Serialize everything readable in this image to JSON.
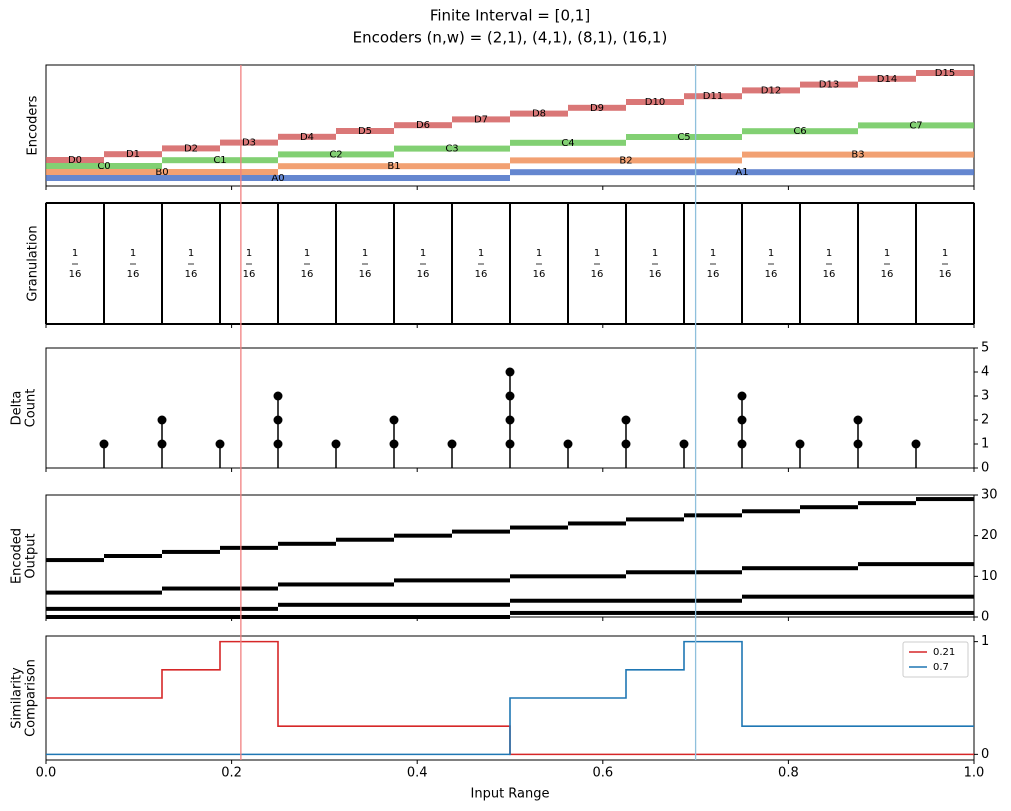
{
  "figure": {
    "title": [
      "Finite Interval = [0,1]",
      "Encoders (n,w) = (2,1), (4,1), (8,1), (16,1)"
    ],
    "xlabel": "Input Range",
    "xlim": [
      0,
      1
    ],
    "xticks": [
      {
        "value": 0,
        "label": "0.0"
      },
      0.2,
      0.4,
      0.6,
      0.8,
      {
        "value": 1,
        "label": "1.0"
      }
    ],
    "cursors": [
      {
        "value": 0.21,
        "color": "#f08080"
      },
      {
        "value": 0.7,
        "color": "#8fc0dc"
      }
    ]
  },
  "chart_data": [
    {
      "type": "segments",
      "ylabel": [
        "Encoders"
      ],
      "series": [
        {
          "color": "#4a72c8",
          "labels": [
            "A0",
            "A1"
          ],
          "edges": [
            0,
            0.5,
            1
          ]
        },
        {
          "color": "#f0915a",
          "labels": [
            "B0",
            "B1",
            "B2",
            "B3"
          ],
          "edges": [
            0,
            0.25,
            0.5,
            0.75,
            1
          ]
        },
        {
          "color": "#6cc85a",
          "labels": [
            "C0",
            "C1",
            "C2",
            "C3",
            "C4",
            "C5",
            "C6",
            "C7"
          ],
          "edges": [
            0,
            0.125,
            0.25,
            0.375,
            0.5,
            0.625,
            0.75,
            0.875,
            1
          ]
        },
        {
          "color": "#d45f5f",
          "labels": [
            "D0",
            "D1",
            "D2",
            "D3",
            "D4",
            "D5",
            "D6",
            "D7",
            "D8",
            "D9",
            "D10",
            "D11",
            "D12",
            "D13",
            "D14",
            "D15"
          ],
          "edges": [
            0,
            0.0625,
            0.125,
            0.1875,
            0.25,
            0.3125,
            0.375,
            0.4375,
            0.5,
            0.5625,
            0.625,
            0.6875,
            0.75,
            0.8125,
            0.875,
            0.9375,
            1
          ]
        }
      ]
    },
    {
      "type": "granulation",
      "ylabel": [
        "Granulation"
      ],
      "edges": [
        0,
        0.0625,
        0.125,
        0.1875,
        0.25,
        0.3125,
        0.375,
        0.4375,
        0.5,
        0.5625,
        0.625,
        0.6875,
        0.75,
        0.8125,
        0.875,
        0.9375,
        1
      ],
      "fractions": [
        [
          "1",
          "16"
        ],
        [
          "1",
          "16"
        ],
        [
          "1",
          "16"
        ],
        [
          "1",
          "16"
        ],
        [
          "1",
          "16"
        ],
        [
          "1",
          "16"
        ],
        [
          "1",
          "16"
        ],
        [
          "1",
          "16"
        ],
        [
          "1",
          "16"
        ],
        [
          "1",
          "16"
        ],
        [
          "1",
          "16"
        ],
        [
          "1",
          "16"
        ],
        [
          "1",
          "16"
        ],
        [
          "1",
          "16"
        ],
        [
          "1",
          "16"
        ],
        [
          "1",
          "16"
        ]
      ]
    },
    {
      "type": "stem",
      "ylabel": [
        "Delta",
        "Count"
      ],
      "color": "#000000",
      "x": [
        0.0625,
        0.125,
        0.1875,
        0.25,
        0.3125,
        0.375,
        0.4375,
        0.5,
        0.5625,
        0.625,
        0.6875,
        0.75,
        0.8125,
        0.875,
        0.9375
      ],
      "values": [
        1,
        2,
        1,
        3,
        1,
        2,
        1,
        4,
        1,
        2,
        1,
        3,
        1,
        2,
        1
      ],
      "ylim": [
        0,
        5
      ],
      "yticks": [
        0,
        1,
        2,
        3,
        4,
        5
      ]
    },
    {
      "type": "steps",
      "ylabel": [
        "Encoded",
        "Output"
      ],
      "color": "#000000",
      "ylim": [
        0,
        30
      ],
      "yticks": [
        0,
        10,
        20,
        30
      ],
      "series": [
        {
          "edges": [
            0,
            0.5,
            1
          ],
          "values": [
            0,
            1
          ]
        },
        {
          "edges": [
            0,
            0.25,
            0.5,
            0.75,
            1
          ],
          "values": [
            2,
            3,
            4,
            5
          ]
        },
        {
          "edges": [
            0,
            0.125,
            0.25,
            0.375,
            0.5,
            0.625,
            0.75,
            0.875,
            1
          ],
          "values": [
            6,
            7,
            8,
            9,
            10,
            11,
            12,
            13
          ]
        },
        {
          "edges": [
            0,
            0.0625,
            0.125,
            0.1875,
            0.25,
            0.3125,
            0.375,
            0.4375,
            0.5,
            0.5625,
            0.625,
            0.6875,
            0.75,
            0.8125,
            0.875,
            0.9375,
            1
          ],
          "values": [
            14,
            15,
            16,
            17,
            18,
            19,
            20,
            21,
            22,
            23,
            24,
            25,
            26,
            27,
            28,
            29
          ]
        }
      ]
    },
    {
      "type": "line",
      "ylabel": [
        "Similarity",
        "Comparison"
      ],
      "ylim": [
        -0.05,
        1.05
      ],
      "yticks": [
        0,
        1
      ],
      "legend": "upper right",
      "series": [
        {
          "name": "0.21",
          "color": "#d62728",
          "x": [
            0,
            0.125,
            0.125,
            0.1875,
            0.1875,
            0.25,
            0.25,
            0.5,
            0.5,
            1
          ],
          "values": [
            0.5,
            0.5,
            0.75,
            0.75,
            1,
            1,
            0.25,
            0.25,
            0,
            0
          ]
        },
        {
          "name": "0.7",
          "color": "#1f77b4",
          "x": [
            0,
            0.5,
            0.5,
            0.625,
            0.625,
            0.6875,
            0.6875,
            0.75,
            0.75,
            1
          ],
          "values": [
            0,
            0,
            0.5,
            0.5,
            0.75,
            0.75,
            1,
            1,
            0.25,
            0.25
          ]
        }
      ]
    }
  ]
}
